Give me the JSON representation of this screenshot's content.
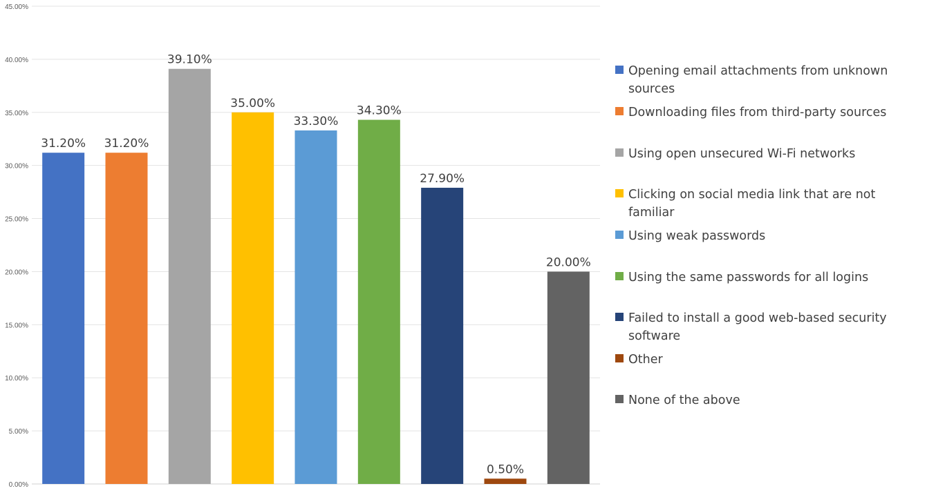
{
  "chart_data": {
    "type": "bar",
    "categories": [
      "Opening email attachments from unknown sources",
      "Downloading files from third-party sources",
      "Using open unsecured Wi-Fi networks",
      "Clicking on social media link that are not familiar",
      "Using weak passwords",
      "Using the same passwords for all logins",
      "Failed to install a good web-based security software",
      "Other",
      "None of the above"
    ],
    "values": [
      31.2,
      31.2,
      39.1,
      35.0,
      33.3,
      34.3,
      27.9,
      0.5,
      20.0
    ],
    "data_labels": [
      "31.20%",
      "31.20%",
      "39.10%",
      "35.00%",
      "33.30%",
      "34.30%",
      "27.90%",
      "0.50%",
      "20.00%"
    ],
    "colors": [
      "#4472C4",
      "#ED7D31",
      "#A5A5A5",
      "#FFC000",
      "#5B9BD5",
      "#70AD47",
      "#264478",
      "#9E480E",
      "#636363"
    ],
    "ylim": [
      0,
      45
    ],
    "y_ticks": [
      0,
      5,
      10,
      15,
      20,
      25,
      30,
      35,
      40,
      45
    ],
    "y_tick_labels": [
      "0.00%",
      "5.00%",
      "10.00%",
      "15.00%",
      "20.00%",
      "25.00%",
      "30.00%",
      "35.00%",
      "40.00%",
      "45.00%"
    ],
    "grid": true,
    "legend_position": "right"
  }
}
